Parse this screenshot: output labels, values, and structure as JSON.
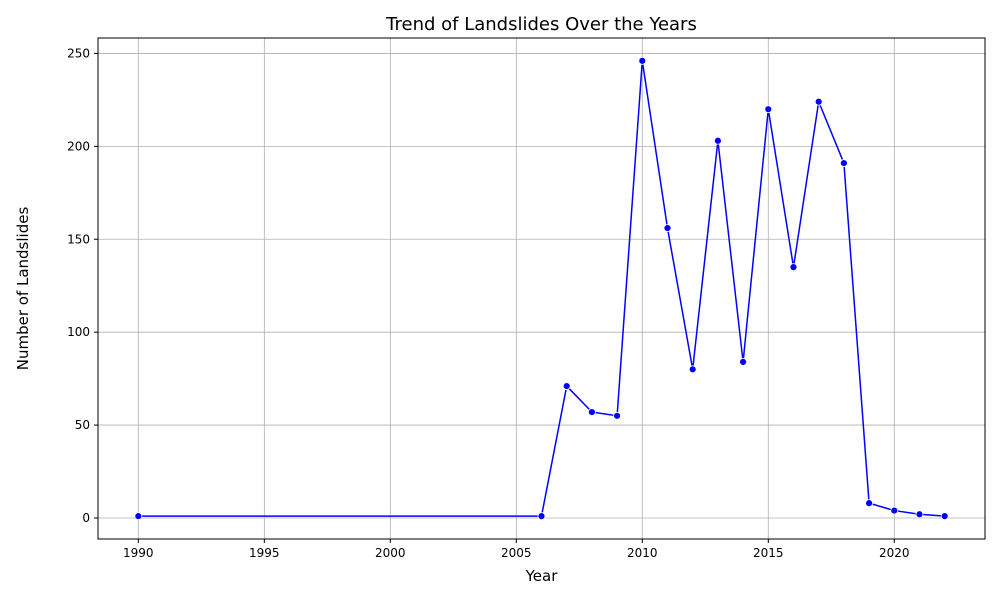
{
  "chart_data": {
    "type": "line",
    "title": "Trend of Landslides Over the Years",
    "xlabel": "Year",
    "ylabel": "Number of Landslides",
    "x": [
      1990,
      2006,
      2007,
      2008,
      2009,
      2010,
      2011,
      2012,
      2013,
      2014,
      2015,
      2016,
      2017,
      2018,
      2019,
      2020,
      2021,
      2022
    ],
    "values": [
      1,
      1,
      71,
      57,
      55,
      246,
      156,
      80,
      203,
      84,
      220,
      135,
      224,
      191,
      8,
      4,
      2,
      1
    ],
    "xlim": [
      1988.4,
      2023.6
    ],
    "ylim": [
      -11.3,
      258.3
    ],
    "xticks": [
      1990,
      1995,
      2000,
      2005,
      2010,
      2015,
      2020
    ],
    "yticks": [
      0,
      50,
      100,
      150,
      200,
      250
    ],
    "grid": true,
    "line_color": "#0000ff",
    "marker": "circle"
  }
}
